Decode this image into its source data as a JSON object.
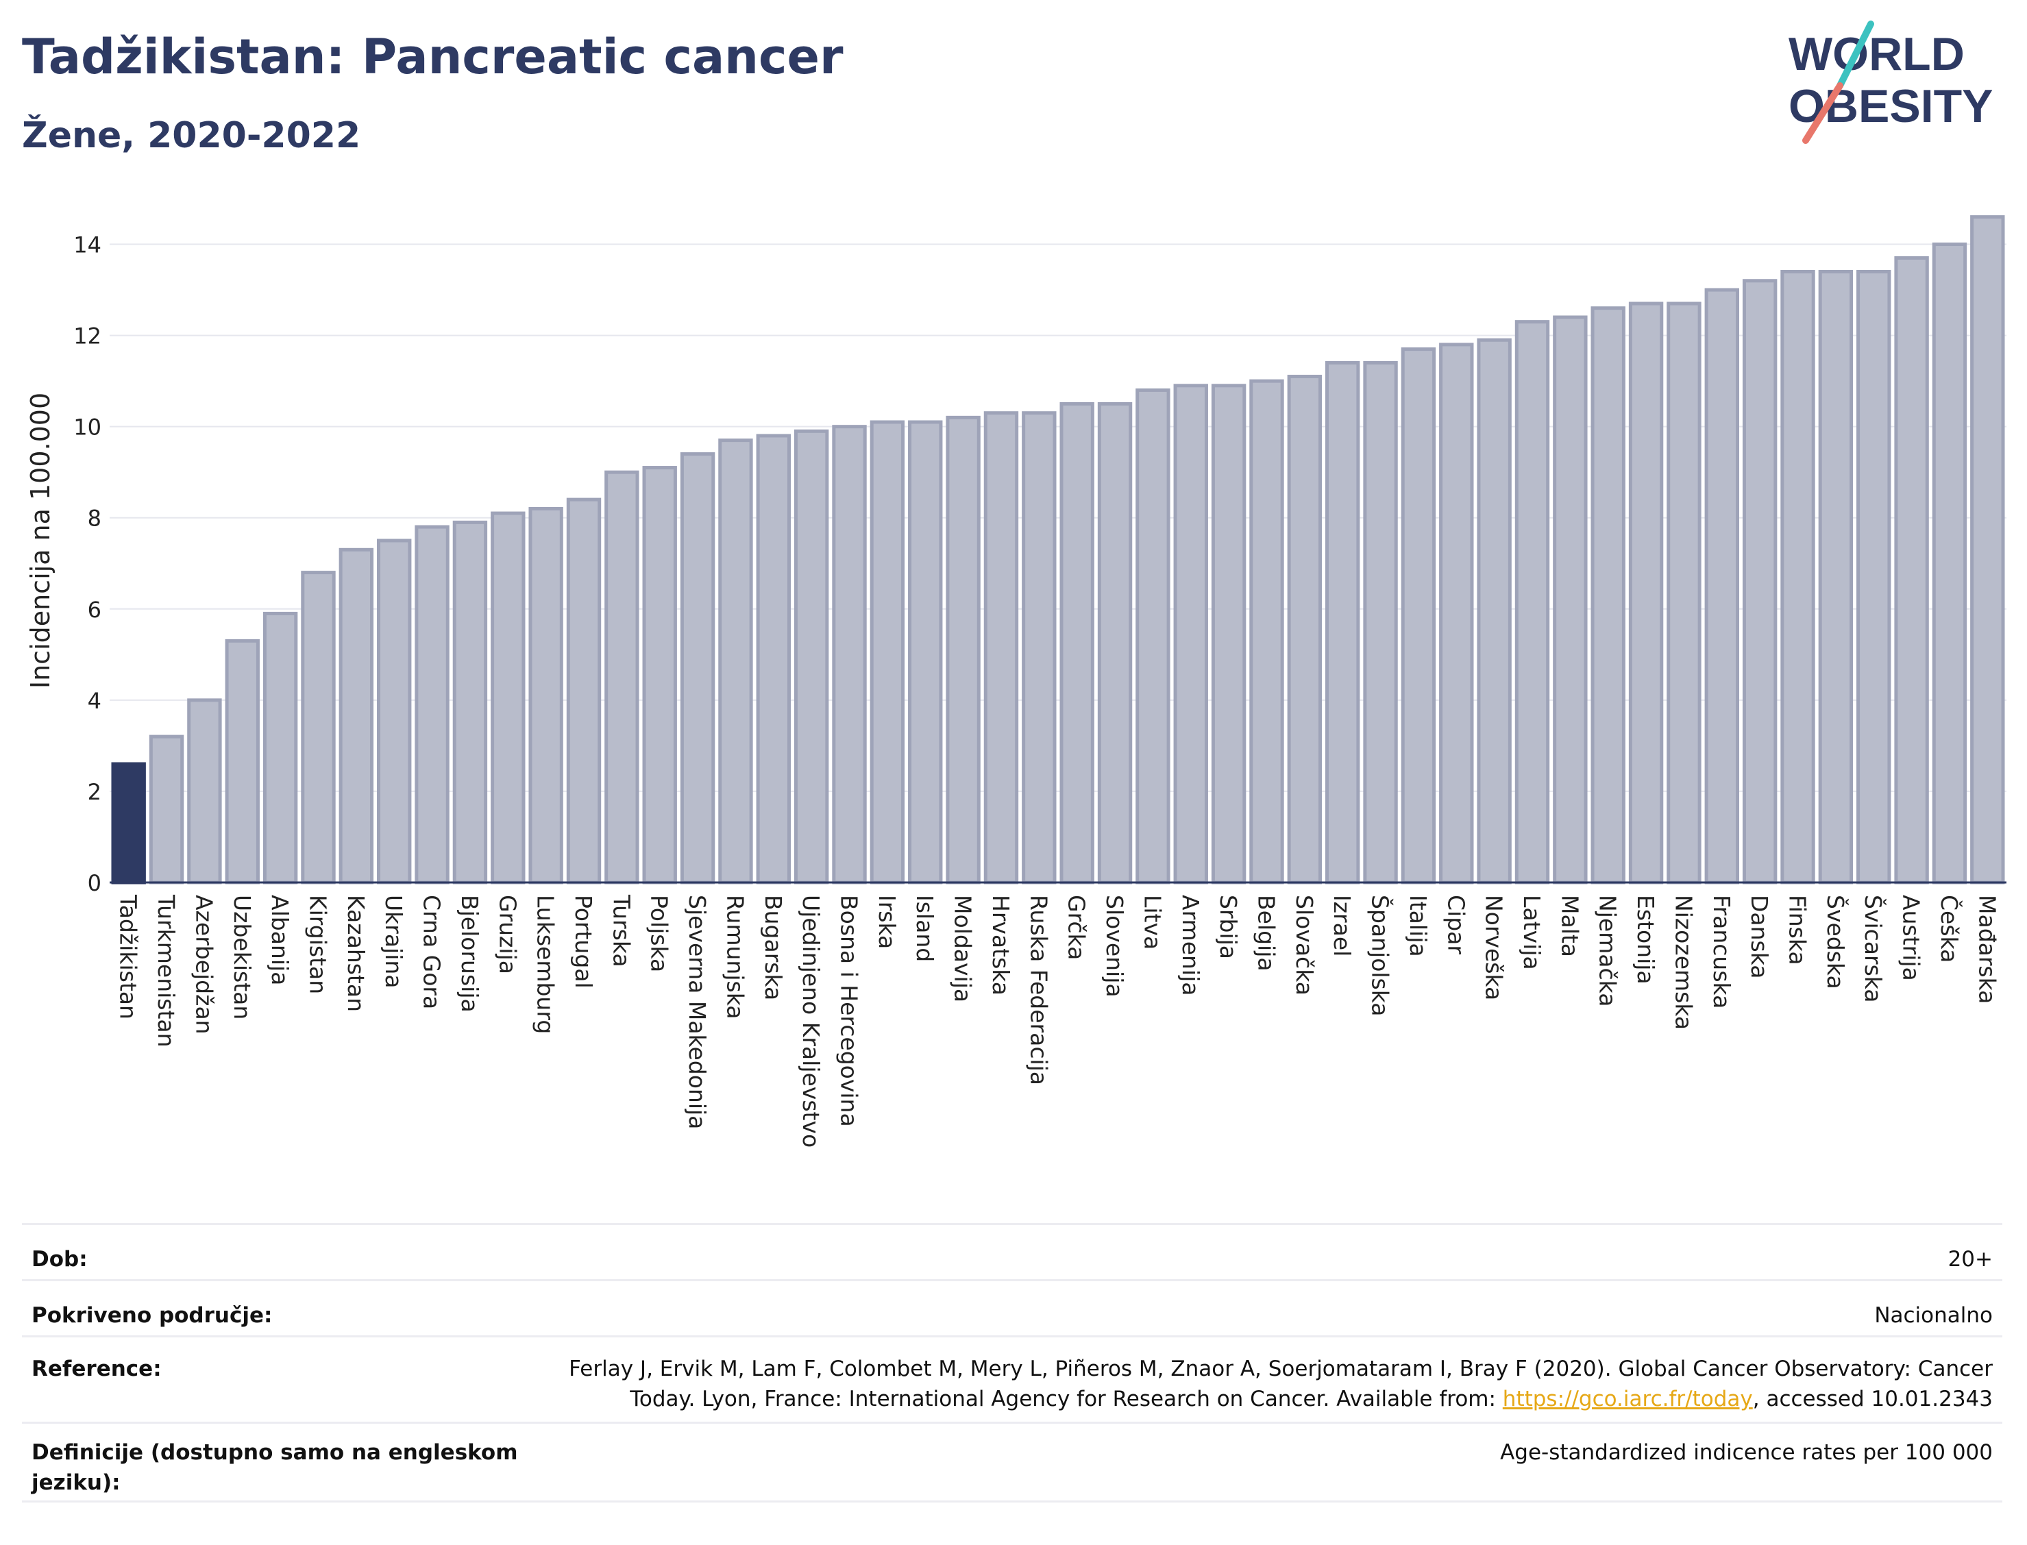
{
  "header": {
    "title": "Tadžikistan: Pancreatic cancer",
    "subtitle": "Žene, 2020-2022"
  },
  "logo": {
    "line1": "WORLD",
    "line2": "OBESITY",
    "accent_color": "#e8776b",
    "accent_color2": "#3cc2c0",
    "text_color": "#2e3a63"
  },
  "colors": {
    "highlight": "#2e3a63",
    "bar_fill": "#b8bccb",
    "bar_stroke": "#9ea3b8"
  },
  "chart_data": {
    "type": "bar",
    "ylabel": "Incidencija na 100.000",
    "ylim": [
      0,
      15
    ],
    "yticks": [
      0,
      2,
      4,
      6,
      8,
      10,
      12,
      14
    ],
    "highlight": "Tadžikistan",
    "categories": [
      "Tadžikistan",
      "Turkmenistan",
      "Azerbejdžan",
      "Uzbekistan",
      "Albanija",
      "Kirgistan",
      "Kazahstan",
      "Ukrajina",
      "Crna Gora",
      "Bjelorusija",
      "Gruzija",
      "Luksemburg",
      "Portugal",
      "Turska",
      "Poljska",
      "Sjeverna Makedonija",
      "Rumunjska",
      "Bugarska",
      "Ujedinjeno Kraljevstvo",
      "Bosna i Hercegovina",
      "Irska",
      "Island",
      "Moldavija",
      "Hrvatska",
      "Ruska Federacija",
      "Grčka",
      "Slovenija",
      "Litva",
      "Armenija",
      "Srbija",
      "Belgija",
      "Slovačka",
      "Izrael",
      "Španjolska",
      "Italija",
      "Cipar",
      "Norveška",
      "Latvija",
      "Malta",
      "Njemačka",
      "Estonija",
      "Nizozemska",
      "Francuska",
      "Danska",
      "Finska",
      "Švedska",
      "Švicarska",
      "Austrija",
      "Češka",
      "Mađarska"
    ],
    "values": [
      2.6,
      3.2,
      4.0,
      5.3,
      5.9,
      6.8,
      7.3,
      7.5,
      7.8,
      7.9,
      8.1,
      8.2,
      8.4,
      9.0,
      9.1,
      9.4,
      9.7,
      9.8,
      9.9,
      10.0,
      10.1,
      10.1,
      10.2,
      10.3,
      10.3,
      10.5,
      10.5,
      10.8,
      10.9,
      10.9,
      11.0,
      11.1,
      11.4,
      11.4,
      11.7,
      11.8,
      11.9,
      12.3,
      12.4,
      12.6,
      12.7,
      12.7,
      13.0,
      13.2,
      13.4,
      13.4,
      13.4,
      13.7,
      14.0,
      14.6
    ]
  },
  "meta": {
    "age": {
      "label": "Dob:",
      "value": "20+"
    },
    "coverage": {
      "label": "Pokriveno područje:",
      "value": "Nacionalno"
    },
    "reference": {
      "label": "Reference:",
      "line1": "Ferlay J, Ervik M, Lam F, Colombet M, Mery L, Piñeros M, Znaor A, Soerjomataram I, Bray F (2020). Global Cancer Observatory: Cancer",
      "line2_pre": "Today. Lyon, France: International Agency for Research on Cancer. Available from: ",
      "link": "https://gco.iarc.fr/today",
      "line2_post": ", accessed 10.01.2343"
    },
    "definitions": {
      "label_line1": "Definicije (dostupno samo na engleskom",
      "label_line2": "jeziku):",
      "value": "Age-standardized indicence rates per 100 000"
    }
  }
}
